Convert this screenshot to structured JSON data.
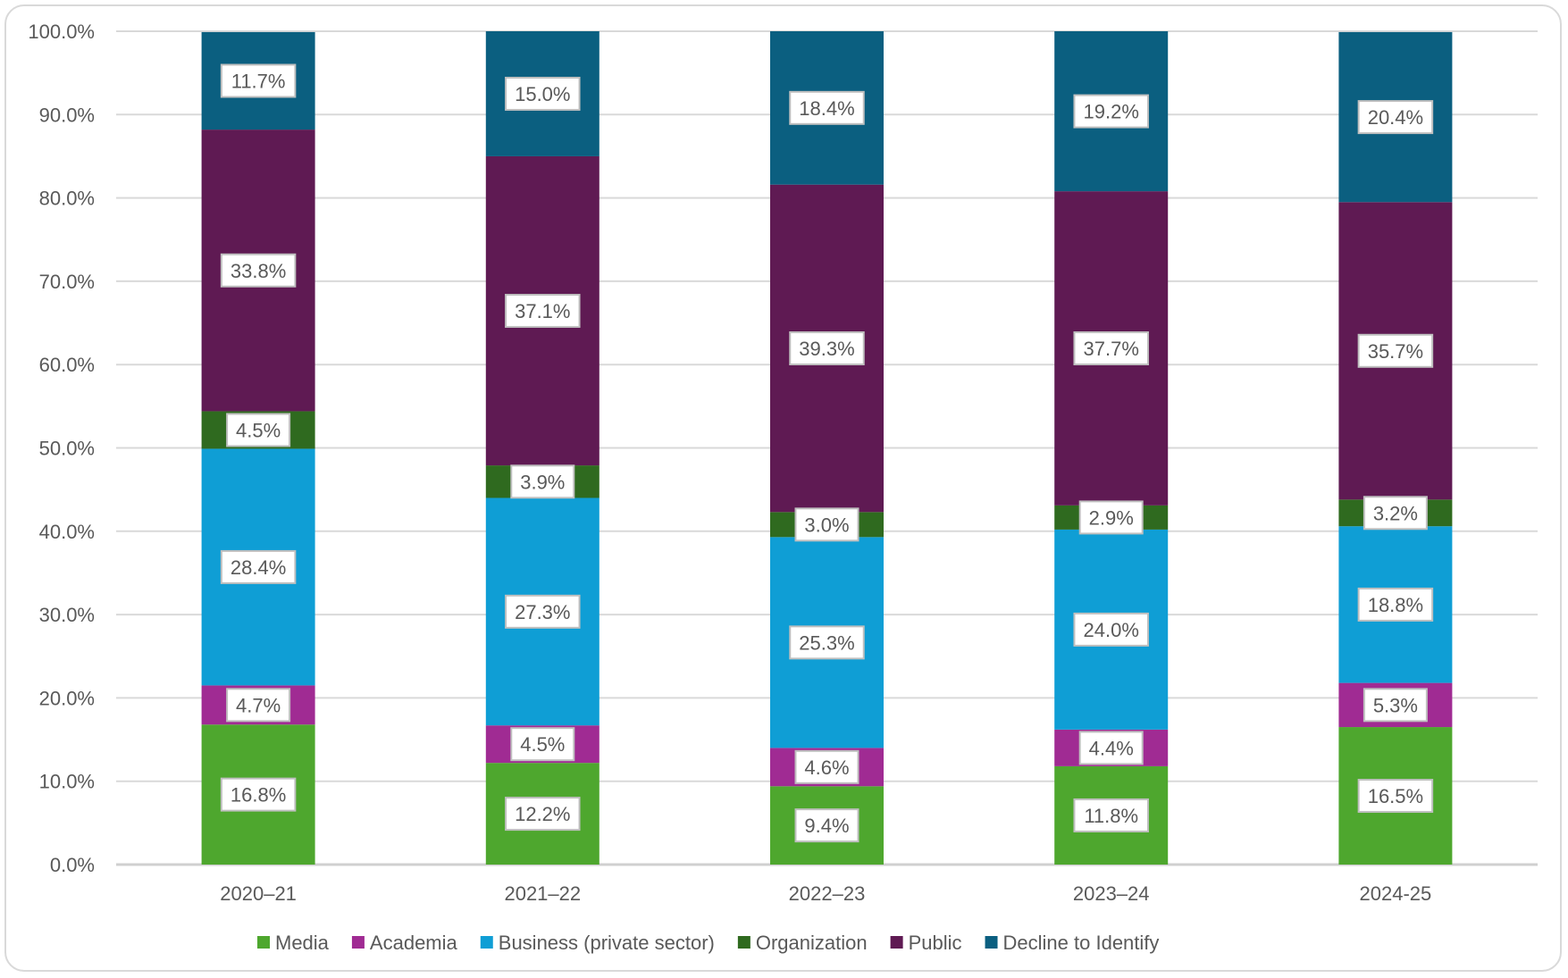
{
  "chart_data": {
    "type": "bar",
    "stacked": true,
    "categories": [
      "2020–21",
      "2021–22",
      "2022–23",
      "2023–24",
      "2024-25"
    ],
    "series": [
      {
        "name": "Media",
        "color": "#4ea72e",
        "values": [
          16.8,
          12.2,
          9.4,
          11.8,
          16.5
        ]
      },
      {
        "name": "Academia",
        "color": "#a02b93",
        "values": [
          4.7,
          4.5,
          4.6,
          4.4,
          5.3
        ]
      },
      {
        "name": "Business (private sector)",
        "color": "#0f9ed5",
        "values": [
          28.4,
          27.3,
          25.3,
          24.0,
          18.8
        ]
      },
      {
        "name": "Organization",
        "color": "#2f6a1f",
        "values": [
          4.5,
          3.9,
          3.0,
          2.9,
          3.2
        ]
      },
      {
        "name": "Public",
        "color": "#5f1a53",
        "values": [
          33.8,
          37.1,
          39.3,
          37.7,
          35.7
        ]
      },
      {
        "name": "Decline to Identify",
        "color": "#0b5f80",
        "values": [
          11.7,
          15.0,
          18.4,
          19.2,
          20.4
        ]
      }
    ],
    "ylim": [
      0,
      100
    ],
    "yticks": [
      "0.0%",
      "10.0%",
      "20.0%",
      "30.0%",
      "40.0%",
      "50.0%",
      "60.0%",
      "70.0%",
      "80.0%",
      "90.0%",
      "100.0%"
    ],
    "data_labels": true,
    "grid": true,
    "legend": "bottom",
    "title": "",
    "xlabel": "",
    "ylabel": ""
  }
}
